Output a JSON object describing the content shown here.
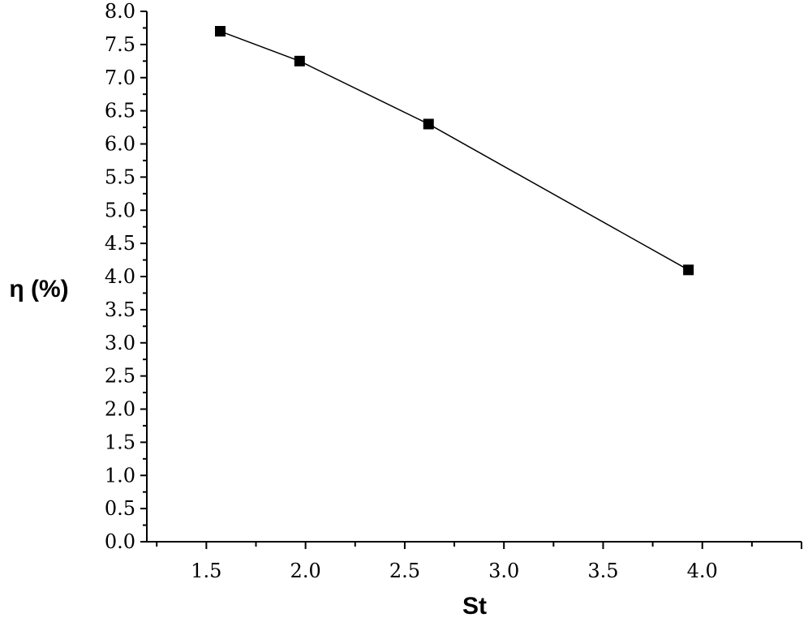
{
  "chart_data": {
    "type": "line",
    "title": "",
    "xlabel": "St",
    "ylabel": "η (%)",
    "xlim": [
      1.2,
      4.5
    ],
    "ylim": [
      0.0,
      8.0
    ],
    "x_ticks": [
      "1.5",
      "2.0",
      "2.5",
      "3.0",
      "3.5",
      "4.0"
    ],
    "y_ticks": [
      "0.0",
      "0.5",
      "1.0",
      "1.5",
      "2.0",
      "2.5",
      "3.0",
      "3.5",
      "4.0",
      "4.5",
      "5.0",
      "5.5",
      "6.0",
      "6.5",
      "7.0",
      "7.5",
      "8.0"
    ],
    "grid": false,
    "series": [
      {
        "marker": "square",
        "color": "#000000",
        "points": [
          {
            "x": 1.57,
            "y": 7.7
          },
          {
            "x": 1.97,
            "y": 7.25
          },
          {
            "x": 2.62,
            "y": 6.3
          },
          {
            "x": 3.93,
            "y": 4.1
          }
        ]
      }
    ]
  }
}
